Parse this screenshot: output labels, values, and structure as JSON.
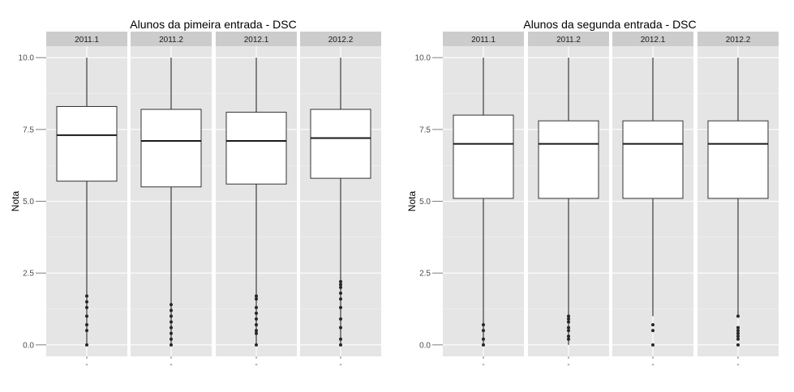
{
  "chart_data": [
    {
      "type": "boxplot",
      "title": "Alunos da pimeira entrada - DSC",
      "ylabel": "Nota",
      "xlabel": "",
      "ylim": [
        -0.4,
        10.4
      ],
      "yticks": [
        0.0,
        2.5,
        5.0,
        7.5,
        10.0
      ],
      "ytick_labels": [
        "0.0",
        "2.5",
        "5.0",
        "7.5",
        "10.0"
      ],
      "grid": true,
      "panel_background": "#e5e5e5",
      "strip_background": "#cccccc",
      "facets": [
        {
          "label": "2011.1",
          "x_tick": "-",
          "min": 0.0,
          "q1": 5.7,
          "median": 7.3,
          "q3": 8.3,
          "max": 10.0,
          "outliers": [
            0.0,
            0.5,
            0.7,
            1.0,
            1.3,
            1.5,
            1.7
          ]
        },
        {
          "label": "2011.2",
          "x_tick": "-",
          "min": 0.0,
          "q1": 5.5,
          "median": 7.1,
          "q3": 8.2,
          "max": 10.0,
          "outliers": [
            0.0,
            0.2,
            0.4,
            0.6,
            0.8,
            1.0,
            1.2,
            1.4
          ]
        },
        {
          "label": "2012.1",
          "x_tick": "-",
          "min": 0.0,
          "q1": 5.6,
          "median": 7.1,
          "q3": 8.1,
          "max": 10.0,
          "outliers": [
            0.0,
            0.4,
            0.5,
            0.7,
            0.9,
            1.1,
            1.3,
            1.6,
            1.7
          ]
        },
        {
          "label": "2012.2",
          "x_tick": "-",
          "min": 0.0,
          "q1": 5.8,
          "median": 7.2,
          "q3": 8.2,
          "max": 10.0,
          "outliers": [
            0.0,
            0.2,
            0.6,
            0.9,
            1.3,
            1.6,
            1.8,
            2.0,
            2.1,
            2.2
          ]
        }
      ]
    },
    {
      "type": "boxplot",
      "title": "Alunos da segunda entrada - DSC",
      "ylabel": "Nota",
      "xlabel": "",
      "ylim": [
        -0.4,
        10.4
      ],
      "yticks": [
        0.0,
        2.5,
        5.0,
        7.5,
        10.0
      ],
      "ytick_labels": [
        "0.0",
        "2.5",
        "5.0",
        "7.5",
        "10.0"
      ],
      "grid": true,
      "panel_background": "#e5e5e5",
      "strip_background": "#cccccc",
      "facets": [
        {
          "label": "2011.1",
          "x_tick": "-",
          "min": 0.0,
          "q1": 5.1,
          "median": 7.0,
          "q3": 8.0,
          "max": 10.0,
          "outliers": [
            0.0,
            0.2,
            0.5,
            0.7
          ]
        },
        {
          "label": "2011.2",
          "x_tick": "-",
          "min": 0.0,
          "q1": 5.1,
          "median": 7.0,
          "q3": 7.8,
          "max": 10.0,
          "outliers": [
            0.2,
            0.3,
            0.5,
            0.6,
            0.8,
            0.9,
            1.0
          ]
        },
        {
          "label": "2012.1",
          "x_tick": "-",
          "min": 1.0,
          "q1": 5.1,
          "median": 7.0,
          "q3": 7.8,
          "max": 10.0,
          "outliers": [
            0.0,
            0.5,
            0.7
          ]
        },
        {
          "label": "2012.2",
          "x_tick": "-",
          "min": 1.0,
          "q1": 5.1,
          "median": 7.0,
          "q3": 7.8,
          "max": 10.0,
          "outliers": [
            0.0,
            0.2,
            0.3,
            0.4,
            0.5,
            0.6,
            1.0
          ]
        }
      ]
    }
  ]
}
